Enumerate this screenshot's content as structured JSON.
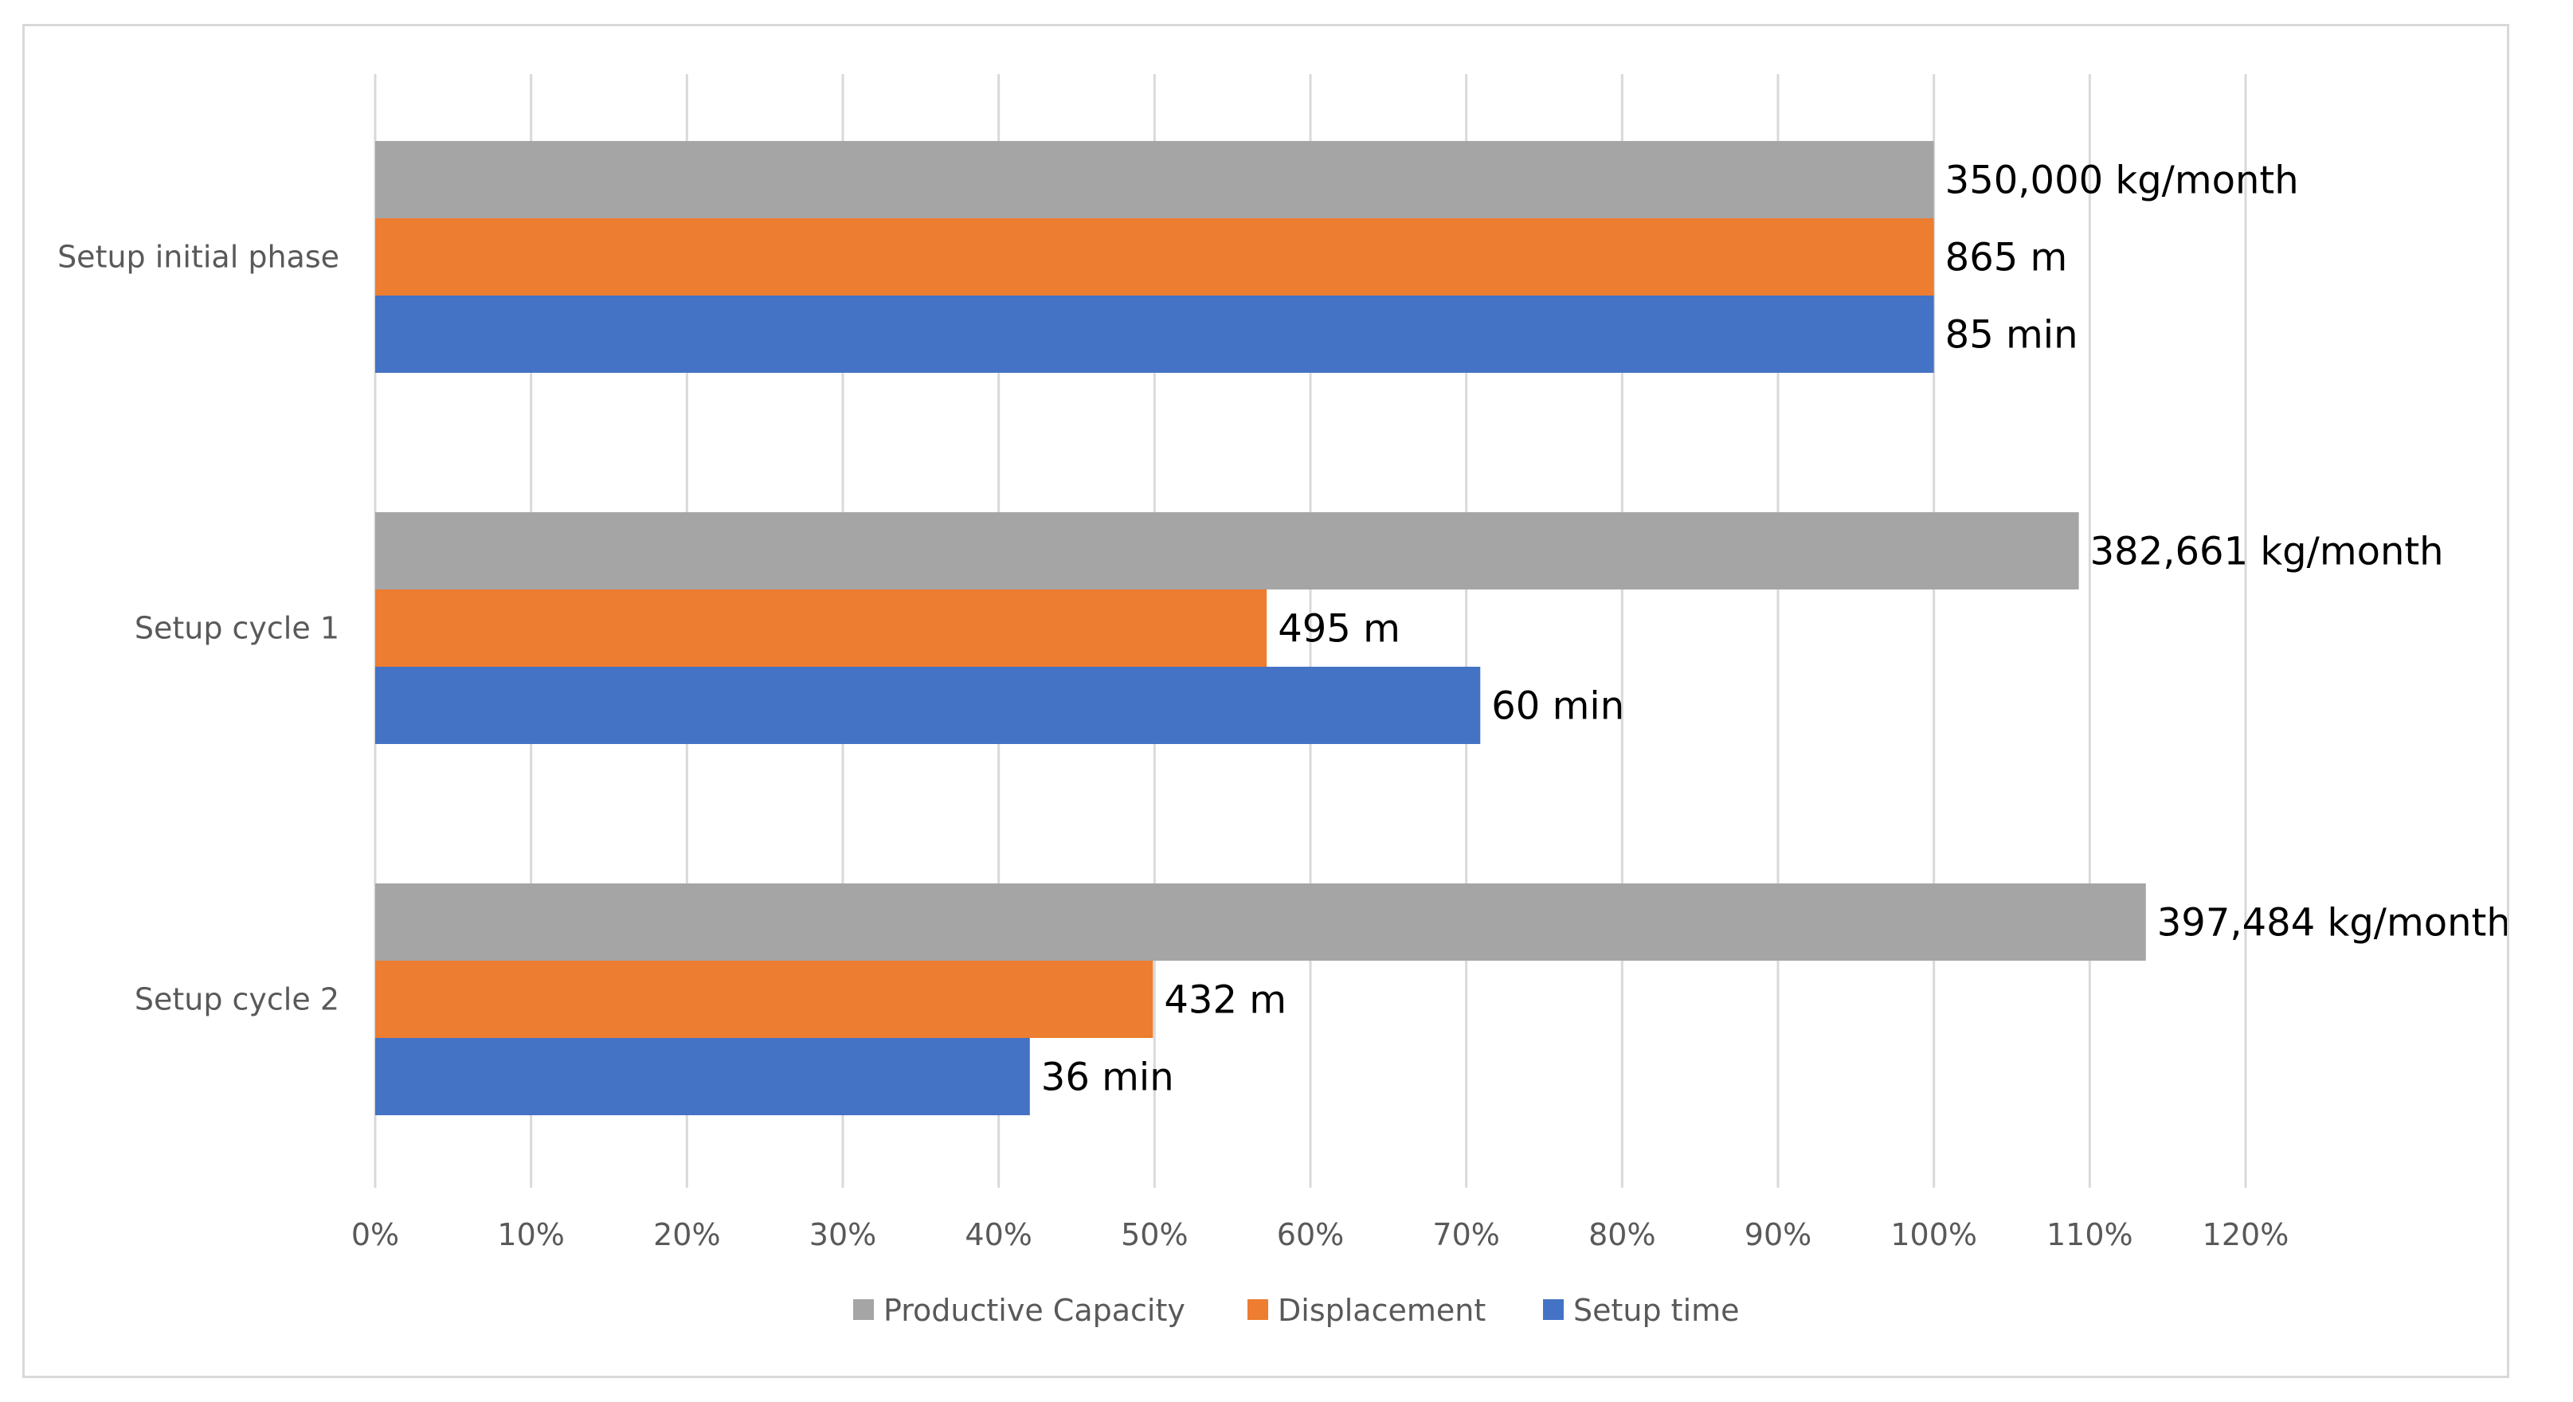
{
  "chart_data": {
    "type": "bar",
    "orientation": "horizontal",
    "categories": [
      "Setup initial phase",
      "Setup cycle 1",
      "Setup cycle 2"
    ],
    "series": [
      {
        "name": "Productive Capacity",
        "color": "#a5a5a5",
        "values": [
          100,
          109.3,
          113.6
        ],
        "labels": [
          "350,000 kg/month",
          "382,661 kg/month",
          "397,484 kg/month"
        ]
      },
      {
        "name": "Displacement",
        "color": "#ed7d31",
        "values": [
          100,
          57.2,
          49.9
        ],
        "labels": [
          "865 m",
          "495 m",
          "432 m"
        ]
      },
      {
        "name": "Setup time",
        "color": "#4472c4",
        "values": [
          100,
          70.9,
          42.0
        ],
        "labels": [
          "85 min",
          "60 min",
          "36 min"
        ]
      }
    ],
    "xlim": [
      0,
      120
    ],
    "x_ticks": [
      0,
      10,
      20,
      30,
      40,
      50,
      60,
      70,
      80,
      90,
      100,
      110,
      120
    ],
    "x_tick_labels": [
      "0%",
      "10%",
      "20%",
      "30%",
      "40%",
      "50%",
      "60%",
      "70%",
      "80%",
      "90%",
      "100%",
      "110%",
      "120%"
    ],
    "grid": "vertical",
    "legend_position": "bottom"
  }
}
